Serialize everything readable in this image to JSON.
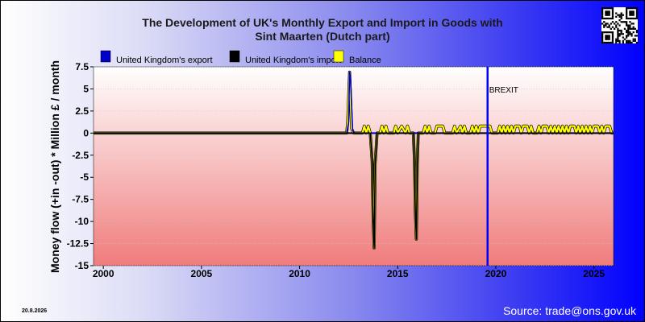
{
  "chart_data": {
    "type": "line",
    "title_lines": [
      "The Development of UK's Monthly Export and Import in Goods with",
      "Sint Maarten (Dutch part)"
    ],
    "ylabel": "Money flow (+in -out) * Million £ / month",
    "xlabel": "",
    "xlim": [
      1999.5,
      2026.0
    ],
    "ylim": [
      -15,
      7.5
    ],
    "x_ticks": [
      2000,
      2005,
      2010,
      2015,
      2020,
      2025
    ],
    "y_ticks": [
      7.5,
      5,
      2.5,
      0,
      -2.5,
      -5,
      -7.5,
      -10,
      -12.5,
      -15
    ],
    "y_tick_labels": [
      "7.5",
      "5",
      "2.5",
      "0",
      "-2.5",
      "-5",
      "-7.5",
      "-10",
      "-12.5",
      "-15"
    ],
    "legend": {
      "placement": "top",
      "entries": [
        {
          "label": "United Kingdom's export",
          "color": "#0000cc"
        },
        {
          "label": "United Kingdom's import",
          "color": "#000000"
        },
        {
          "label": "Balance",
          "color": "#ffff00"
        }
      ]
    },
    "series": [
      {
        "name": "United Kingdom's export",
        "color": "#0000cc",
        "points": [
          [
            1999.5,
            0
          ],
          [
            2012.4,
            0
          ],
          [
            2012.5,
            1.2
          ],
          [
            2012.55,
            6.9
          ],
          [
            2012.6,
            6.2
          ],
          [
            2012.7,
            0.3
          ],
          [
            2012.8,
            0
          ],
          [
            2026.0,
            0
          ]
        ]
      },
      {
        "name": "United Kingdom's import",
        "color": "#000000",
        "points": [
          [
            1999.5,
            0
          ],
          [
            2013.6,
            0
          ],
          [
            2013.7,
            -3.2
          ],
          [
            2013.75,
            -9.8
          ],
          [
            2013.8,
            -13
          ],
          [
            2013.85,
            -3.5
          ],
          [
            2013.95,
            0
          ],
          [
            2015.8,
            0
          ],
          [
            2015.85,
            -3
          ],
          [
            2015.9,
            -9
          ],
          [
            2015.95,
            -12
          ],
          [
            2016.0,
            -3.5
          ],
          [
            2016.05,
            0
          ],
          [
            2026.0,
            0
          ]
        ]
      },
      {
        "name": "Balance",
        "color": "#ffff00",
        "points": [
          [
            1999.5,
            0
          ],
          [
            2012.4,
            0
          ],
          [
            2012.45,
            1.2
          ],
          [
            2012.55,
            6.9
          ],
          [
            2012.65,
            0.5
          ],
          [
            2012.75,
            0
          ],
          [
            2013.2,
            0
          ],
          [
            2013.3,
            0.8
          ],
          [
            2013.4,
            0
          ],
          [
            2013.5,
            0.8
          ],
          [
            2013.6,
            0
          ],
          [
            2013.7,
            -3.2
          ],
          [
            2013.75,
            -9.8
          ],
          [
            2013.8,
            -13
          ],
          [
            2013.85,
            -3.5
          ],
          [
            2013.95,
            0
          ],
          [
            2014.1,
            0
          ],
          [
            2014.2,
            0.8
          ],
          [
            2014.3,
            0
          ],
          [
            2014.4,
            0.8
          ],
          [
            2014.5,
            0
          ],
          [
            2014.8,
            0
          ],
          [
            2014.9,
            0.8
          ],
          [
            2015.0,
            0
          ],
          [
            2015.2,
            0.8
          ],
          [
            2015.4,
            0
          ],
          [
            2015.5,
            0.8
          ],
          [
            2015.6,
            0
          ],
          [
            2015.8,
            0
          ],
          [
            2015.85,
            -3
          ],
          [
            2015.9,
            -9
          ],
          [
            2015.95,
            -12
          ],
          [
            2016.0,
            -3.5
          ],
          [
            2016.05,
            0
          ],
          [
            2016.3,
            0
          ],
          [
            2016.4,
            0.8
          ],
          [
            2016.5,
            0
          ],
          [
            2016.6,
            0.8
          ],
          [
            2016.7,
            0
          ],
          [
            2016.9,
            0
          ],
          [
            2017.0,
            0.8
          ],
          [
            2017.3,
            0.8
          ],
          [
            2017.4,
            0
          ],
          [
            2017.8,
            0
          ],
          [
            2017.9,
            0.8
          ],
          [
            2018.0,
            0
          ],
          [
            2018.2,
            0.8
          ],
          [
            2018.3,
            0
          ],
          [
            2018.4,
            0.8
          ],
          [
            2018.5,
            0
          ],
          [
            2018.7,
            0
          ],
          [
            2018.8,
            0.8
          ],
          [
            2018.9,
            0
          ],
          [
            2019.0,
            0.8
          ],
          [
            2019.1,
            0
          ],
          [
            2019.2,
            0.8
          ],
          [
            2019.7,
            0.8
          ],
          [
            2019.8,
            0
          ],
          [
            2020.1,
            0
          ],
          [
            2020.2,
            0.8
          ],
          [
            2020.3,
            0
          ],
          [
            2020.4,
            0.8
          ],
          [
            2020.5,
            0
          ],
          [
            2020.6,
            0.8
          ],
          [
            2020.7,
            0
          ],
          [
            2020.8,
            0.8
          ],
          [
            2020.9,
            0
          ],
          [
            2021.0,
            0.8
          ],
          [
            2021.2,
            0.8
          ],
          [
            2021.3,
            0
          ],
          [
            2021.4,
            0.8
          ],
          [
            2021.6,
            0.8
          ],
          [
            2021.7,
            0
          ],
          [
            2021.8,
            0.8
          ],
          [
            2021.9,
            0
          ],
          [
            2022.1,
            0
          ],
          [
            2022.2,
            0.8
          ],
          [
            2022.3,
            0
          ],
          [
            2022.4,
            0.8
          ],
          [
            2022.6,
            0.8
          ],
          [
            2022.7,
            0
          ],
          [
            2022.8,
            0.8
          ],
          [
            2022.9,
            0
          ],
          [
            2023.0,
            0.8
          ],
          [
            2023.1,
            0
          ],
          [
            2023.2,
            0.8
          ],
          [
            2023.3,
            0
          ],
          [
            2023.4,
            0.8
          ],
          [
            2023.5,
            0
          ],
          [
            2023.6,
            0.8
          ],
          [
            2023.7,
            0
          ],
          [
            2023.8,
            0.8
          ],
          [
            2024.0,
            0.8
          ],
          [
            2024.1,
            0
          ],
          [
            2024.2,
            0.8
          ],
          [
            2024.3,
            0
          ],
          [
            2024.4,
            0.8
          ],
          [
            2024.5,
            0
          ],
          [
            2024.6,
            0.8
          ],
          [
            2024.7,
            0
          ],
          [
            2024.8,
            0.8
          ],
          [
            2024.9,
            0
          ],
          [
            2025.0,
            0.8
          ],
          [
            2025.2,
            0.8
          ],
          [
            2025.3,
            0
          ],
          [
            2025.4,
            0.8
          ],
          [
            2025.5,
            0
          ],
          [
            2025.6,
            0.8
          ],
          [
            2025.8,
            0.8
          ],
          [
            2025.9,
            0
          ],
          [
            2026.0,
            0
          ]
        ]
      }
    ],
    "annotations": [
      {
        "text": "BREXIT",
        "x": 2019.58,
        "color": "#0000ff"
      }
    ],
    "grid": true
  },
  "footer": {
    "date": "20.8.2026",
    "source": "Source: trade@ons.gov.uk"
  },
  "colors": {
    "plot_top": "#ffffff",
    "plot_bottom": "#f07c7c",
    "brexit_line": "#0000ff",
    "qr_icon": "qr-code-icon"
  }
}
